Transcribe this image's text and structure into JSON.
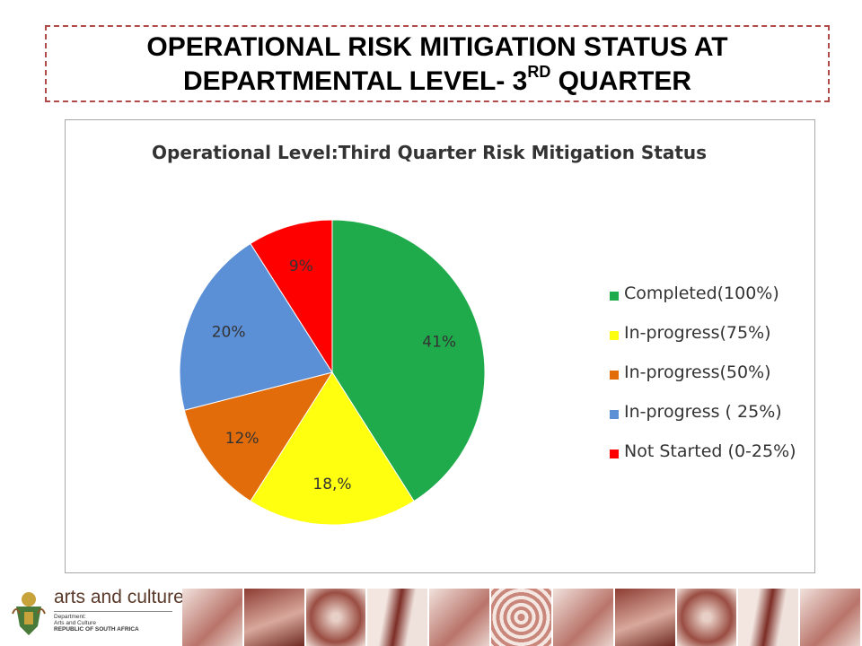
{
  "slide": {
    "title_line1": "OPERATIONAL RISK MITIGATION STATUS AT",
    "title_line2_pre": "DEPARTMENTAL LEVEL- 3",
    "title_line2_sup": "RD",
    "title_line2_post": " QUARTER"
  },
  "chart_data": {
    "type": "pie",
    "title": "Operational Level:Third Quarter Risk Mitigation Status",
    "legend_position": "right",
    "slices": [
      {
        "name": "Completed(100%)",
        "value": 41,
        "label": "41%",
        "color": "#1faa4b"
      },
      {
        "name": "In-progress(75%)",
        "value": 18,
        "label": "18,%",
        "color": "#ffff10"
      },
      {
        "name": "In-progress(50%)",
        "value": 12,
        "label": "12%",
        "color": "#e36c0a"
      },
      {
        "name": "In-progress ( 25%)",
        "value": 20,
        "label": "20%",
        "color": "#5b8fd6"
      },
      {
        "name": "Not Started (0-25%)",
        "value": 9,
        "label": "9%",
        "color": "#ff0000"
      }
    ]
  },
  "footer": {
    "logo_name": "arts and culture",
    "logo_sub1": "Department:",
    "logo_sub2": "Arts and Culture",
    "logo_sub3": "REPUBLIC OF SOUTH AFRICA"
  }
}
